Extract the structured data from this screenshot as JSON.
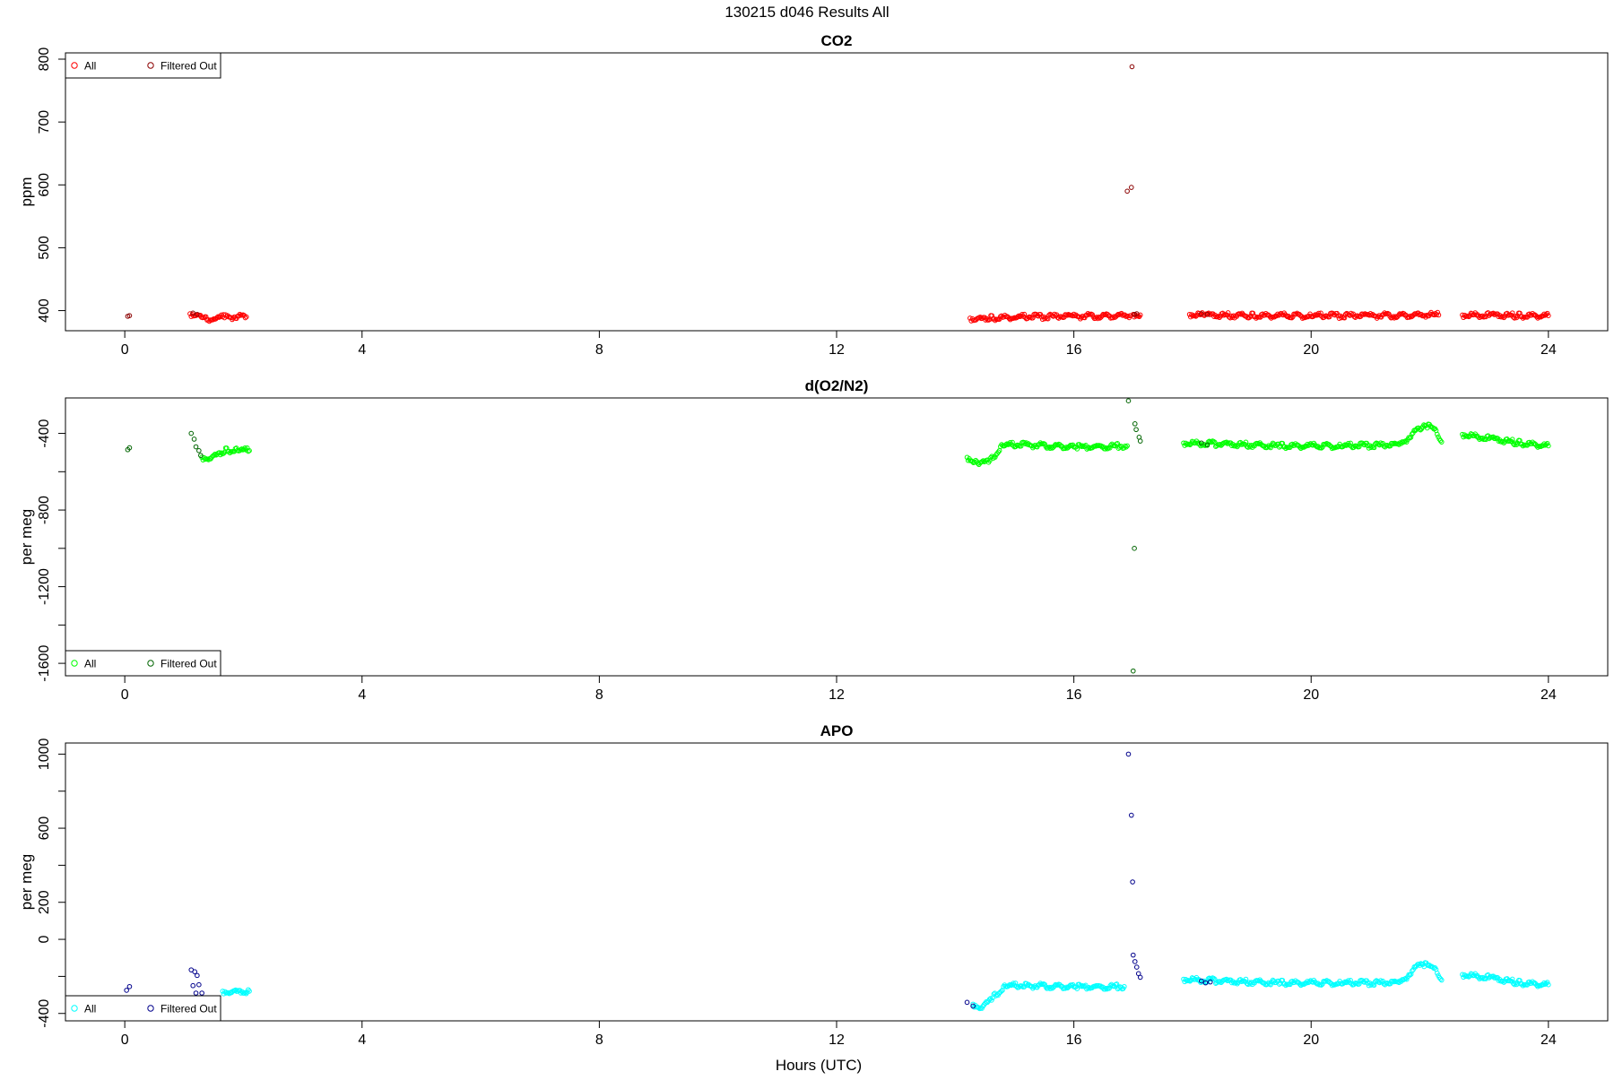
{
  "page_title": "130215   d046   Results All",
  "xlabel": "Hours (UTC)",
  "chart_data": [
    {
      "type": "scatter",
      "title": "CO2",
      "ylabel": "ppm",
      "xlim": [
        -1,
        25
      ],
      "ylim": [
        368,
        810
      ],
      "xticks": [
        0,
        4,
        8,
        12,
        16,
        20,
        24
      ],
      "yticks": [
        400,
        500,
        600,
        700,
        800
      ],
      "yminor": [],
      "legend": {
        "position": "top-left",
        "entries": [
          {
            "label": "All",
            "color": "#ff0000"
          },
          {
            "label": "Filtered Out",
            "color": "#8b0000"
          }
        ]
      },
      "series": [
        {
          "name": "All",
          "color": "#ff0000",
          "segments": [
            {
              "x": [
                1.1,
                1.2,
                1.35,
                1.5,
                1.7,
                2.05
              ],
              "y": [
                395,
                393,
                386,
                388,
                390,
                390
              ]
            },
            {
              "x": [
                14.25,
                14.35,
                14.6,
                15.0,
                16.0,
                16.95
              ],
              "y": [
                388,
                386,
                388,
                390,
                391,
                392
              ]
            },
            {
              "x": [
                17.0,
                17.12
              ],
              "y": [
                394,
                393
              ]
            },
            {
              "x": [
                17.95,
                18.2,
                19.0,
                20.0,
                21.0,
                22.15
              ],
              "y": [
                394,
                393,
                392,
                392,
                392,
                393
              ]
            },
            {
              "x": [
                22.55,
                23.0,
                23.5,
                24.0
              ],
              "y": [
                393,
                393,
                392,
                392
              ]
            }
          ],
          "points": []
        },
        {
          "name": "Filtered Out",
          "color": "#8b0000",
          "segments": [],
          "points": [
            {
              "x": 0.05,
              "y": 391
            },
            {
              "x": 0.08,
              "y": 392
            },
            {
              "x": 1.15,
              "y": 396
            },
            {
              "x": 1.22,
              "y": 394
            },
            {
              "x": 16.9,
              "y": 590
            },
            {
              "x": 16.97,
              "y": 596
            },
            {
              "x": 16.98,
              "y": 788
            },
            {
              "x": 17.02,
              "y": 394
            },
            {
              "x": 17.06,
              "y": 395
            },
            {
              "x": 18.15,
              "y": 395
            },
            {
              "x": 18.25,
              "y": 394
            }
          ]
        }
      ]
    },
    {
      "type": "scatter",
      "title": "d(O2/N2)",
      "ylabel": "per meg",
      "xlim": [
        -1,
        25
      ],
      "ylim": [
        -1665,
        -215
      ],
      "xticks": [
        0,
        4,
        8,
        12,
        16,
        20,
        24
      ],
      "yticks": [
        -400,
        -800,
        -1200,
        -1600
      ],
      "yminor": [
        -600,
        -1000,
        -1400
      ],
      "legend": {
        "position": "bottom-left",
        "entries": [
          {
            "label": "All",
            "color": "#00ff00"
          },
          {
            "label": "Filtered Out",
            "color": "#006400"
          }
        ]
      },
      "series": [
        {
          "name": "All",
          "color": "#00ff00",
          "segments": [
            {
              "x": [
                1.3,
                1.45,
                1.7,
                1.9,
                2.1
              ],
              "y": [
                -525,
                -530,
                -490,
                -485,
                -490
              ]
            },
            {
              "x": [
                14.2,
                14.4,
                14.6,
                14.8,
                15.2,
                16.0,
                16.9
              ],
              "y": [
                -525,
                -560,
                -540,
                -460,
                -460,
                -470,
                -465
              ]
            },
            {
              "x": [
                17.85,
                18.5,
                19.5,
                20.5,
                21.5,
                21.9,
                22.05,
                22.2
              ],
              "y": [
                -450,
                -455,
                -465,
                -465,
                -460,
                -355,
                -370,
                -445
              ]
            },
            {
              "x": [
                22.55,
                23.0,
                23.5,
                24.0
              ],
              "y": [
                -405,
                -425,
                -450,
                -465
              ]
            }
          ],
          "points": []
        },
        {
          "name": "Filtered Out",
          "color": "#006400",
          "segments": [],
          "points": [
            {
              "x": 0.05,
              "y": -485
            },
            {
              "x": 0.08,
              "y": -475
            },
            {
              "x": 1.12,
              "y": -400
            },
            {
              "x": 1.17,
              "y": -430
            },
            {
              "x": 1.2,
              "y": -470
            },
            {
              "x": 1.25,
              "y": -490
            },
            {
              "x": 1.28,
              "y": -515
            },
            {
              "x": 16.92,
              "y": -230
            },
            {
              "x": 17.0,
              "y": -1640
            },
            {
              "x": 17.02,
              "y": -1000
            },
            {
              "x": 17.03,
              "y": -350
            },
            {
              "x": 17.05,
              "y": -380
            },
            {
              "x": 17.1,
              "y": -420
            },
            {
              "x": 17.12,
              "y": -440
            },
            {
              "x": 18.15,
              "y": -450
            },
            {
              "x": 18.25,
              "y": -460
            }
          ]
        }
      ]
    },
    {
      "type": "scatter",
      "title": "APO",
      "ylabel": "per meg",
      "xlim": [
        -1,
        25
      ],
      "ylim": [
        -440,
        1060
      ],
      "xticks": [
        0,
        4,
        8,
        12,
        16,
        20,
        24
      ],
      "yticks": [
        1000,
        600,
        200,
        0,
        -400
      ],
      "yminor": [
        800,
        400,
        -200
      ],
      "legend": {
        "position": "bottom-left",
        "entries": [
          {
            "label": "All",
            "color": "#00ffff"
          },
          {
            "label": "Filtered Out",
            "color": "#00008b"
          }
        ]
      },
      "series": [
        {
          "name": "All",
          "color": "#00ffff",
          "segments": [
            {
              "x": [
                1.65,
                1.8,
                2.1
              ],
              "y": [
                -280,
                -285,
                -280
              ]
            },
            {
              "x": [
                14.3,
                14.45,
                14.65,
                14.85,
                15.2,
                16.0,
                16.85
              ],
              "y": [
                -350,
                -370,
                -310,
                -250,
                -250,
                -255,
                -255
              ]
            },
            {
              "x": [
                17.85,
                18.5,
                19.5,
                20.5,
                21.5,
                21.85,
                22.05,
                22.2
              ],
              "y": [
                -215,
                -225,
                -235,
                -235,
                -235,
                -130,
                -150,
                -220
              ]
            },
            {
              "x": [
                22.55,
                23.0,
                23.5,
                24.0
              ],
              "y": [
                -190,
                -205,
                -235,
                -245
              ]
            }
          ],
          "points": []
        },
        {
          "name": "Filtered Out",
          "color": "#00008b",
          "segments": [],
          "points": [
            {
              "x": 0.03,
              "y": -275
            },
            {
              "x": 0.08,
              "y": -255
            },
            {
              "x": 1.12,
              "y": -165
            },
            {
              "x": 1.18,
              "y": -175
            },
            {
              "x": 1.22,
              "y": -195
            },
            {
              "x": 1.15,
              "y": -250
            },
            {
              "x": 1.25,
              "y": -245
            },
            {
              "x": 1.2,
              "y": -290
            },
            {
              "x": 1.3,
              "y": -290
            },
            {
              "x": 14.2,
              "y": -340
            },
            {
              "x": 14.3,
              "y": -360
            },
            {
              "x": 16.92,
              "y": 1000
            },
            {
              "x": 16.97,
              "y": 670
            },
            {
              "x": 16.99,
              "y": 310
            },
            {
              "x": 17.0,
              "y": -85
            },
            {
              "x": 17.03,
              "y": -120
            },
            {
              "x": 17.06,
              "y": -150
            },
            {
              "x": 17.09,
              "y": -185
            },
            {
              "x": 17.12,
              "y": -205
            },
            {
              "x": 18.15,
              "y": -225
            },
            {
              "x": 18.22,
              "y": -235
            },
            {
              "x": 18.3,
              "y": -230
            }
          ]
        }
      ]
    }
  ]
}
